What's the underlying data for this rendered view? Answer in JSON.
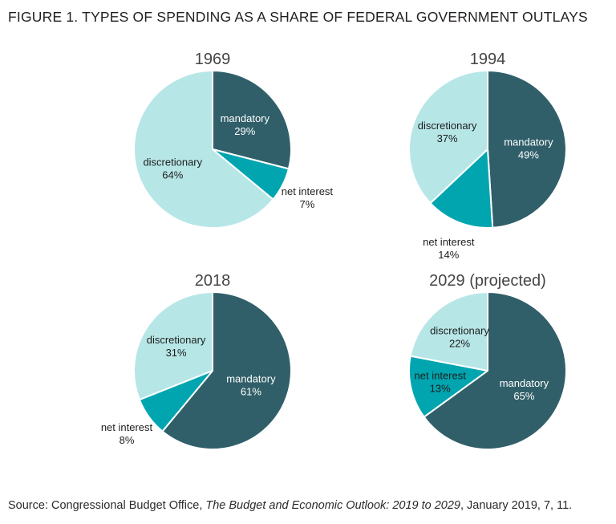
{
  "figure_title": "FIGURE 1. TYPES OF SPENDING AS A SHARE OF FEDERAL GOVERNMENT OUTLAYS",
  "source": {
    "prefix": "Source: Congressional Budget Office, ",
    "italic": "The Budget and Economic Outlook: 2019 to 2029",
    "suffix": ", January 2019, 7, 11."
  },
  "colors": {
    "mandatory": "#305f69",
    "net_interest": "#00a5b0",
    "discretionary": "#b7e6e7",
    "slice_border": "#ffffff",
    "label_on_dark": "#ffffff",
    "label_on_light": "#1d1d1d",
    "figure_title_text": "#231f20",
    "year_title_text": "#454545",
    "source_text": "#2b2b2b",
    "background": "#ffffff"
  },
  "chart_data": [
    {
      "type": "pie",
      "title": "1969",
      "unit": "%",
      "start_angle": "12-o-clock, clockwise",
      "slices": [
        {
          "label": "mandatory",
          "value": 29,
          "category": "mandatory",
          "label_placement": "inside"
        },
        {
          "label": "net interest",
          "value": 7,
          "category": "net_interest",
          "label_placement": "outside"
        },
        {
          "label": "discretionary",
          "value": 64,
          "category": "discretionary",
          "label_placement": "inside"
        }
      ]
    },
    {
      "type": "pie",
      "title": "1994",
      "unit": "%",
      "start_angle": "12-o-clock, clockwise",
      "slices": [
        {
          "label": "mandatory",
          "value": 49,
          "category": "mandatory",
          "label_placement": "inside"
        },
        {
          "label": "net interest",
          "value": 14,
          "category": "net_interest",
          "label_placement": "outside"
        },
        {
          "label": "discretionary",
          "value": 37,
          "category": "discretionary",
          "label_placement": "inside"
        }
      ]
    },
    {
      "type": "pie",
      "title": "2018",
      "unit": "%",
      "start_angle": "12-o-clock, clockwise",
      "slices": [
        {
          "label": "mandatory",
          "value": 61,
          "category": "mandatory",
          "label_placement": "inside"
        },
        {
          "label": "net interest",
          "value": 8,
          "category": "net_interest",
          "label_placement": "outside"
        },
        {
          "label": "discretionary",
          "value": 31,
          "category": "discretionary",
          "label_placement": "inside"
        }
      ]
    },
    {
      "type": "pie",
      "title": "2029 (projected)",
      "unit": "%",
      "start_angle": "12-o-clock, clockwise",
      "slices": [
        {
          "label": "mandatory",
          "value": 65,
          "category": "mandatory",
          "label_placement": "inside"
        },
        {
          "label": "net interest",
          "value": 13,
          "category": "net_interest",
          "label_placement": "inside"
        },
        {
          "label": "discretionary",
          "value": 22,
          "category": "discretionary",
          "label_placement": "inside"
        }
      ]
    }
  ]
}
